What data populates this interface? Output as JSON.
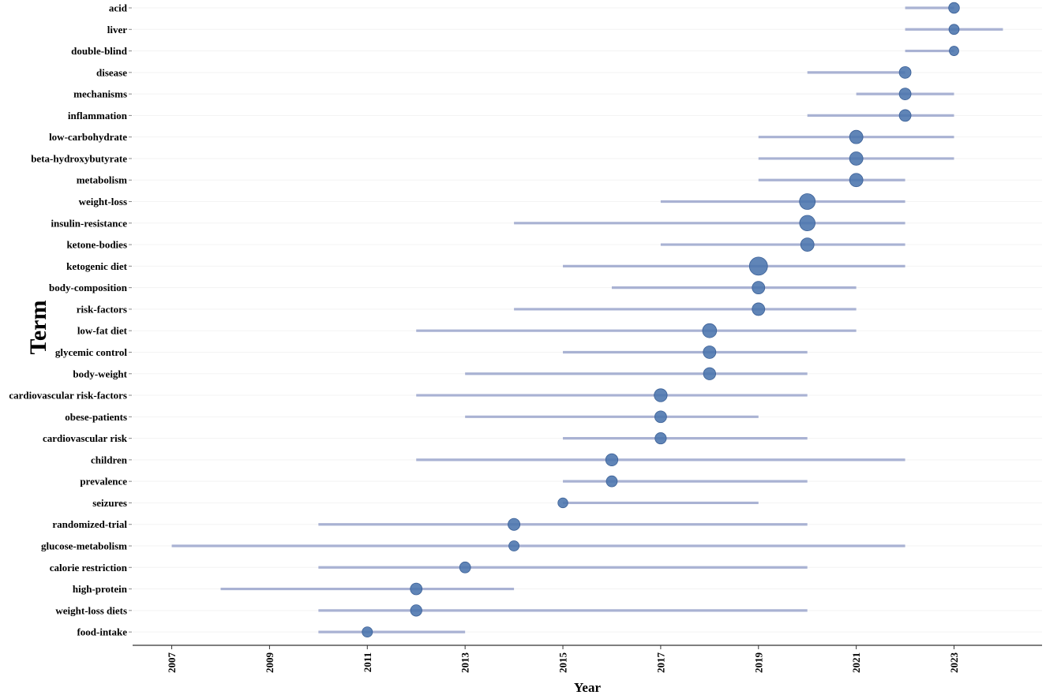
{
  "chart_data": {
    "type": "scatter",
    "xlabel": "Year",
    "ylabel": "Term",
    "xlim": [
      2006.2,
      2024.8
    ],
    "x_ticks": [
      2007,
      2009,
      2011,
      2013,
      2015,
      2017,
      2019,
      2021,
      2023
    ],
    "grid": "horizontal",
    "colors": {
      "range_line": "#a9b2d3",
      "point": "#4a74ad",
      "point_stroke": "#3a5f96",
      "axis": "#333333",
      "grid": "#f3f3f3"
    },
    "terms": [
      {
        "term": "acid",
        "start": 2022,
        "end": 2023,
        "peak": 2023,
        "weight": 2
      },
      {
        "term": "liver",
        "start": 2022,
        "end": 2024,
        "peak": 2023,
        "weight": 1.5
      },
      {
        "term": "double-blind",
        "start": 2022,
        "end": 2023,
        "peak": 2023,
        "weight": 1
      },
      {
        "term": "disease",
        "start": 2020,
        "end": 2022,
        "peak": 2022,
        "weight": 3
      },
      {
        "term": "mechanisms",
        "start": 2021,
        "end": 2023,
        "peak": 2022,
        "weight": 3
      },
      {
        "term": "inflammation",
        "start": 2020,
        "end": 2023,
        "peak": 2022,
        "weight": 3
      },
      {
        "term": "low-carbohydrate",
        "start": 2019,
        "end": 2023,
        "peak": 2021,
        "weight": 5
      },
      {
        "term": "beta-hydroxybutyrate",
        "start": 2019,
        "end": 2023,
        "peak": 2021,
        "weight": 5
      },
      {
        "term": "metabolism",
        "start": 2019,
        "end": 2022,
        "peak": 2021,
        "weight": 5
      },
      {
        "term": "weight-loss",
        "start": 2017,
        "end": 2022,
        "peak": 2020,
        "weight": 9
      },
      {
        "term": "insulin-resistance",
        "start": 2014,
        "end": 2022,
        "peak": 2020,
        "weight": 8.5
      },
      {
        "term": "ketone-bodies",
        "start": 2017,
        "end": 2022,
        "peak": 2020,
        "weight": 5
      },
      {
        "term": "ketogenic diet",
        "start": 2015,
        "end": 2022,
        "peak": 2019,
        "weight": 14
      },
      {
        "term": "body-composition",
        "start": 2016,
        "end": 2021,
        "peak": 2019,
        "weight": 4
      },
      {
        "term": "risk-factors",
        "start": 2014,
        "end": 2021,
        "peak": 2019,
        "weight": 4
      },
      {
        "term": "low-fat diet",
        "start": 2012,
        "end": 2021,
        "peak": 2018,
        "weight": 6
      },
      {
        "term": "glycemic control",
        "start": 2015,
        "end": 2020,
        "peak": 2018,
        "weight": 4
      },
      {
        "term": "body-weight",
        "start": 2013,
        "end": 2020,
        "peak": 2018,
        "weight": 3.5
      },
      {
        "term": "cardiovascular risk-factors",
        "start": 2012,
        "end": 2020,
        "peak": 2017,
        "weight": 4.5
      },
      {
        "term": "obese-patients",
        "start": 2013,
        "end": 2019,
        "peak": 2017,
        "weight": 3
      },
      {
        "term": "cardiovascular risk",
        "start": 2015,
        "end": 2020,
        "peak": 2017,
        "weight": 2.5
      },
      {
        "term": "children",
        "start": 2012,
        "end": 2022,
        "peak": 2016,
        "weight": 3.5
      },
      {
        "term": "prevalence",
        "start": 2015,
        "end": 2020,
        "peak": 2016,
        "weight": 2.2
      },
      {
        "term": "seizures",
        "start": 2015,
        "end": 2019,
        "peak": 2015,
        "weight": 1.3
      },
      {
        "term": "randomized-trial",
        "start": 2010,
        "end": 2020,
        "peak": 2014,
        "weight": 3.2
      },
      {
        "term": "glucose-metabolism",
        "start": 2007,
        "end": 2022,
        "peak": 2014,
        "weight": 1.6
      },
      {
        "term": "calorie restriction",
        "start": 2010,
        "end": 2020,
        "peak": 2013,
        "weight": 2.2
      },
      {
        "term": "high-protein",
        "start": 2008,
        "end": 2014,
        "peak": 2012,
        "weight": 3
      },
      {
        "term": "weight-loss diets",
        "start": 2010,
        "end": 2020,
        "peak": 2012,
        "weight": 2.6
      },
      {
        "term": "food-intake",
        "start": 2010,
        "end": 2013,
        "peak": 2011,
        "weight": 1.6
      }
    ]
  }
}
